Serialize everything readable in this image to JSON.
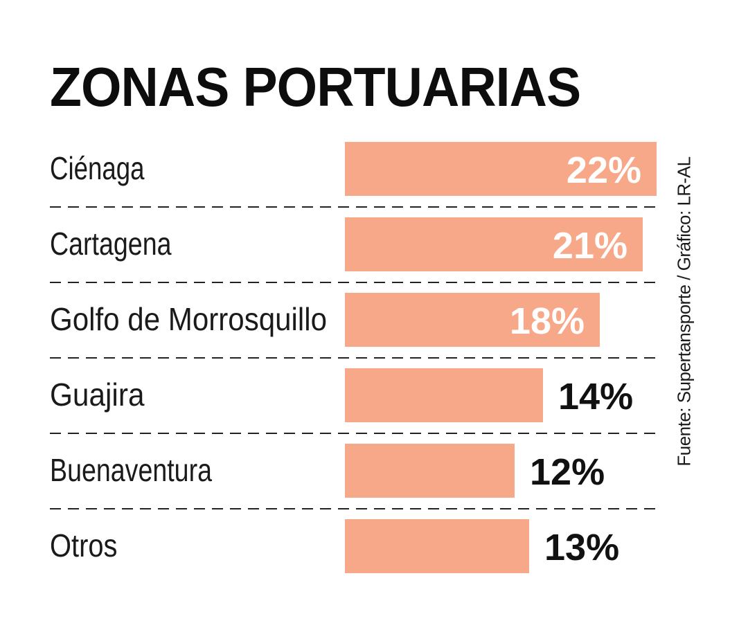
{
  "chart_data": {
    "type": "bar",
    "orientation": "horizontal",
    "title": "ZONAS PORTUARIAS",
    "categories": [
      "Ciénaga",
      "Cartagena",
      "Golfo de Morrosquillo",
      "Guajira",
      "Buenaventura",
      "Otros"
    ],
    "values": [
      22,
      21,
      18,
      14,
      12,
      13
    ],
    "value_labels": [
      "22%",
      "21%",
      "18%",
      "14%",
      "12%",
      "13%"
    ],
    "xlim": [
      0,
      22
    ],
    "grid": false,
    "legend": "none"
  },
  "source": "Fuente: Supertansporte / Gráfico: LR-AL",
  "colors": {
    "bar": "#f7a888",
    "label_inside": "#ffffff",
    "label_outside": "#111111",
    "text": "#1a1a1a",
    "divider": "#222222"
  }
}
